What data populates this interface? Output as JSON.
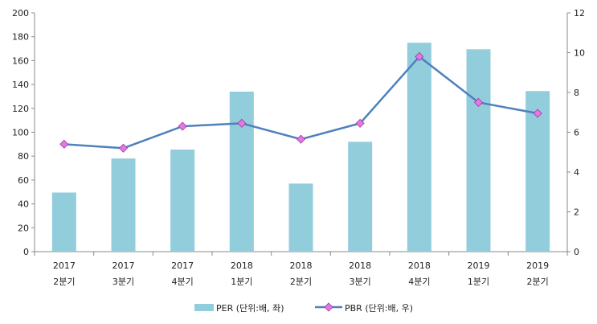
{
  "chart_data": {
    "type": "bar+line",
    "categories": [
      {
        "year": "2017",
        "quarter": "2분기"
      },
      {
        "year": "2017",
        "quarter": "3분기"
      },
      {
        "year": "2017",
        "quarter": "4분기"
      },
      {
        "year": "2018",
        "quarter": "1분기"
      },
      {
        "year": "2018",
        "quarter": "2분기"
      },
      {
        "year": "2018",
        "quarter": "3분기"
      },
      {
        "year": "2018",
        "quarter": "4분기"
      },
      {
        "year": "2019",
        "quarter": "1분기"
      },
      {
        "year": "2019",
        "quarter": "2분기"
      }
    ],
    "series": [
      {
        "name": "PER (단위:배, 좌)",
        "type": "bar",
        "axis": "left",
        "color": "#92CDDC",
        "values": [
          49.5,
          78,
          85.5,
          134,
          57,
          92,
          175,
          169.5,
          134.5
        ]
      },
      {
        "name": "PBR (단위:배, 우)",
        "type": "line",
        "axis": "right",
        "color": "#4F81BD",
        "marker_color": "#E377E3",
        "values": [
          5.4,
          5.2,
          6.3,
          6.45,
          5.65,
          6.45,
          9.8,
          7.5,
          6.95
        ]
      }
    ],
    "y_left": {
      "min": 0,
      "max": 200,
      "ticks": [
        "0",
        "20",
        "40",
        "60",
        "80",
        "100",
        "120",
        "140",
        "160",
        "180",
        "200"
      ]
    },
    "y_right": {
      "min": 0,
      "max": 12,
      "ticks": [
        "0",
        "2",
        "4",
        "6",
        "8",
        "10",
        "12"
      ]
    },
    "title": "",
    "legend": "bottom",
    "grid": false
  }
}
